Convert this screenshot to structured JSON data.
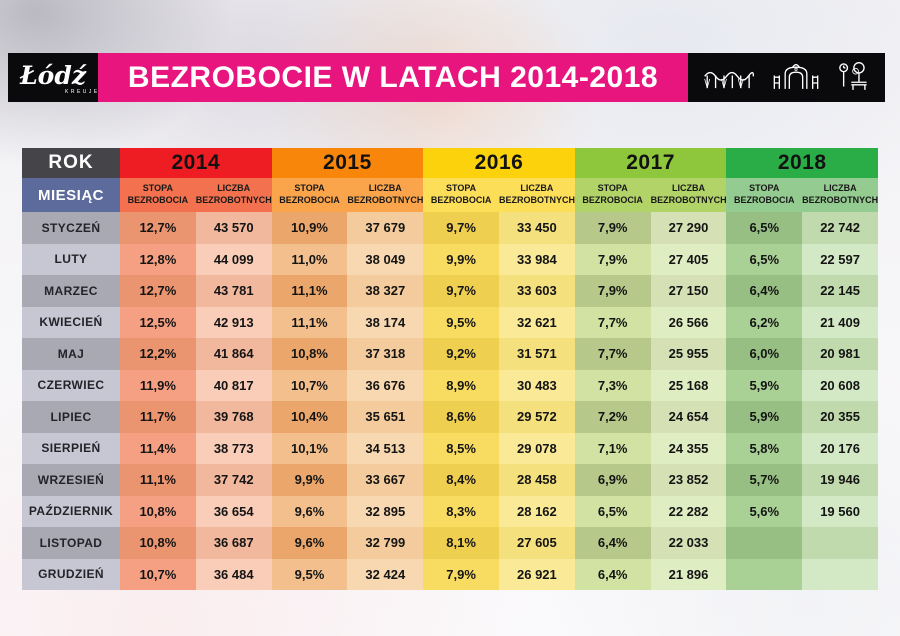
{
  "header": {
    "logo_text": "Łódź",
    "logo_sub": "KREUJE",
    "title": "BEZROBOCIE W LATACH 2014-2018",
    "icons": [
      "viaduct-icon",
      "gate-icon",
      "park-icon"
    ]
  },
  "table": {
    "rok_label": "ROK",
    "miesiac_label": "MIESIĄC",
    "col_stopa": "STOPA BEZROBOCIA",
    "col_liczba": "LICZBA BEZROBOTNYCH"
  },
  "colors": {
    "banner_pink": "#E9157E",
    "box_black": "#0A0A0C",
    "rok_bg": "#454449",
    "miesiac_bg": "#5C6B9B",
    "month_odd": "#A9A9B4",
    "month_even": "#C7C7D3",
    "years": [
      {
        "header": "#EE1C23",
        "sub": "#F3714E",
        "stopa_odd": "#EA9470",
        "stopa_even": "#F6A083",
        "liczba_odd": "#F2B89D",
        "liczba_even": "#FACDB9"
      },
      {
        "header": "#F8860B",
        "sub": "#FAA54C",
        "stopa_odd": "#EBA76B",
        "stopa_even": "#F3C08D",
        "liczba_odd": "#F4CB9C",
        "liczba_even": "#F8D8B0"
      },
      {
        "header": "#FCD20C",
        "sub": "#FCDE59",
        "stopa_odd": "#EFCF50",
        "stopa_even": "#F8DC61",
        "liczba_odd": "#F5E07E",
        "liczba_even": "#FAE997"
      },
      {
        "header": "#8FC73C",
        "sub": "#B2D368",
        "stopa_odd": "#B6C98A",
        "stopa_even": "#D2E2A2",
        "liczba_odd": "#D5E0B4",
        "liczba_even": "#DFEDC2"
      },
      {
        "header": "#2AAD47",
        "sub": "#93CB90",
        "stopa_odd": "#97BF83",
        "stopa_even": "#A9D095",
        "liczba_odd": "#C0DAAE",
        "liczba_even": "#D3E9C6"
      }
    ]
  },
  "chart_data": {
    "type": "table",
    "title": "BEZROBOCIE W LATACH 2014-2018",
    "row_header": "MIESIĄC",
    "col_groups": [
      "2014",
      "2015",
      "2016",
      "2017",
      "2018"
    ],
    "sub_cols": [
      "STOPA BEZROBOCIA",
      "LICZBA BEZROBOTNYCH"
    ],
    "months": [
      "STYCZEŃ",
      "LUTY",
      "MARZEC",
      "KWIECIEŃ",
      "MAJ",
      "CZERWIEC",
      "LIPIEC",
      "SIERPIEŃ",
      "WRZESIEŃ",
      "PAŹDZIERNIK",
      "LISTOPAD",
      "GRUDZIEŃ"
    ],
    "series": [
      {
        "year": "2014",
        "stopa": [
          "12,7%",
          "12,8%",
          "12,7%",
          "12,5%",
          "12,2%",
          "11,9%",
          "11,7%",
          "11,4%",
          "11,1%",
          "10,8%",
          "10,8%",
          "10,7%"
        ],
        "liczba": [
          "43 570",
          "44 099",
          "43 781",
          "42 913",
          "41 864",
          "40 817",
          "39 768",
          "38 773",
          "37 742",
          "36 654",
          "36 687",
          "36 484"
        ]
      },
      {
        "year": "2015",
        "stopa": [
          "10,9%",
          "11,0%",
          "11,1%",
          "11,1%",
          "10,8%",
          "10,7%",
          "10,4%",
          "10,1%",
          "9,9%",
          "9,6%",
          "9,6%",
          "9,5%"
        ],
        "liczba": [
          "37 679",
          "38 049",
          "38 327",
          "38 174",
          "37 318",
          "36 676",
          "35 651",
          "34 513",
          "33 667",
          "32 895",
          "32 799",
          "32 424"
        ]
      },
      {
        "year": "2016",
        "stopa": [
          "9,7%",
          "9,9%",
          "9,7%",
          "9,5%",
          "9,2%",
          "8,9%",
          "8,6%",
          "8,5%",
          "8,4%",
          "8,3%",
          "8,1%",
          "7,9%"
        ],
        "liczba": [
          "33 450",
          "33 984",
          "33 603",
          "32 621",
          "31 571",
          "30 483",
          "29 572",
          "29 078",
          "28 458",
          "28 162",
          "27 605",
          "26 921"
        ]
      },
      {
        "year": "2017",
        "stopa": [
          "7,9%",
          "7,9%",
          "7,9%",
          "7,7%",
          "7,7%",
          "7,3%",
          "7,2%",
          "7,1%",
          "6,9%",
          "6,5%",
          "6,4%",
          "6,4%"
        ],
        "liczba": [
          "27 290",
          "27 405",
          "27 150",
          "26 566",
          "25 955",
          "25 168",
          "24 654",
          "24 355",
          "23 852",
          "22 282",
          "22 033",
          "21 896"
        ]
      },
      {
        "year": "2018",
        "stopa": [
          "6,5%",
          "6,5%",
          "6,4%",
          "6,2%",
          "6,0%",
          "5,9%",
          "5,9%",
          "5,8%",
          "5,7%",
          "5,6%",
          "",
          ""
        ],
        "liczba": [
          "22 742",
          "22 597",
          "22 145",
          "21 409",
          "20 981",
          "20 608",
          "20 355",
          "20 176",
          "19 946",
          "19 560",
          "",
          ""
        ]
      }
    ]
  }
}
